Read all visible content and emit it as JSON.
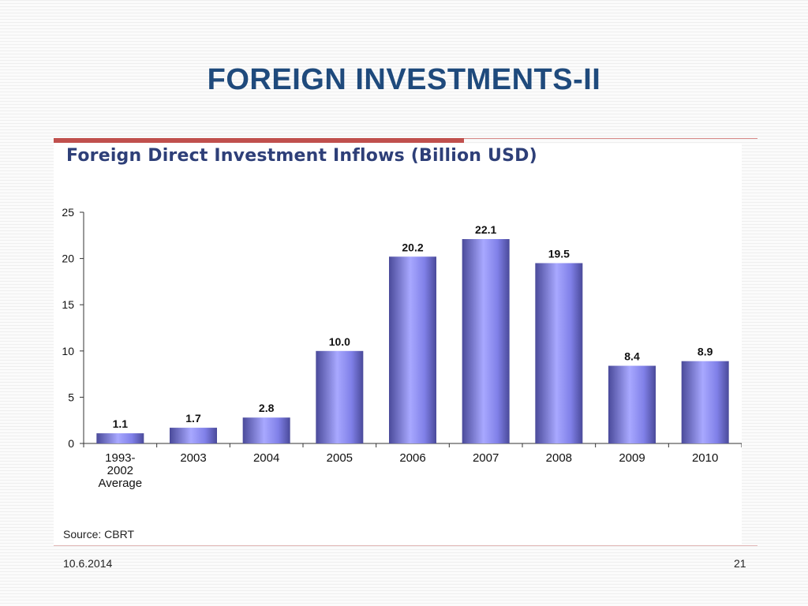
{
  "slide": {
    "title": "FOREIGN INVESTMENTS-II",
    "date": "10.6.2014",
    "page_number": "21"
  },
  "chart_data": {
    "type": "bar",
    "title": "Foreign Direct Investment Inflows (Billion USD)",
    "source": "Source: CBRT",
    "categories": [
      [
        "1993-",
        "2002",
        "Average"
      ],
      [
        "2003"
      ],
      [
        "2004"
      ],
      [
        "2005"
      ],
      [
        "2006"
      ],
      [
        "2007"
      ],
      [
        "2008"
      ],
      [
        "2009"
      ],
      [
        "2010"
      ]
    ],
    "values": [
      1.1,
      1.7,
      2.8,
      10.0,
      20.2,
      22.1,
      19.5,
      8.4,
      8.9
    ],
    "value_labels": [
      "1.1",
      "1.7",
      "2.8",
      "10.0",
      "20.2",
      "22.1",
      "19.5",
      "8.4",
      "8.9"
    ],
    "ylim": [
      0,
      25
    ],
    "yticks": [
      0,
      5,
      10,
      15,
      20,
      25
    ],
    "xlabel": "",
    "ylabel": "",
    "grid": false,
    "colors": {
      "bar_light": "#a8a8ff",
      "bar_mid": "#8080e8",
      "bar_dark": "#4a4a9a",
      "axis": "#333333",
      "title": "#2e3f78"
    }
  }
}
